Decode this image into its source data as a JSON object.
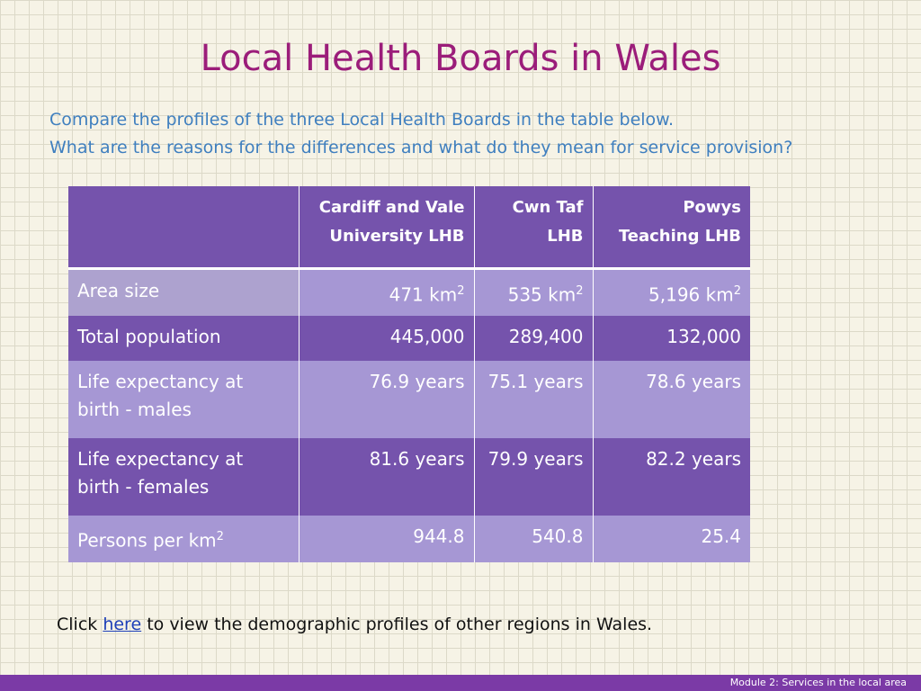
{
  "title": "Local Health Boards in Wales",
  "subtitle": {
    "line1": "Compare the profiles of the three Local Health Boards in the table below.",
    "line2": "What are the reasons for the differences and what do they mean for service provision?"
  },
  "table": {
    "headers": [
      {
        "line1": "",
        "line2": ""
      },
      {
        "line1": "Cardiff and Vale",
        "line2": "University LHB"
      },
      {
        "line1": "Cwn Taf",
        "line2": "LHB"
      },
      {
        "line1": "Powys",
        "line2": "Teaching LHB"
      }
    ],
    "unit_km": "km",
    "sup_2": "2",
    "rows": {
      "area": {
        "label": "Area size",
        "values": [
          "471",
          "535",
          "5,196"
        ]
      },
      "population": {
        "label": "Total population",
        "values": [
          "445,000",
          "289,400",
          "132,000"
        ]
      },
      "life_males": {
        "label_line1": "Life expectancy at",
        "label_line2": "birth - males",
        "values": [
          "76.9 years",
          "75.1 years",
          "78.6 years"
        ]
      },
      "life_females": {
        "label_line1": "Life expectancy at",
        "label_line2": "birth - females",
        "values": [
          "81.6 years",
          "79.9 years",
          "82.2 years"
        ]
      },
      "density": {
        "label": "Persons per km",
        "values": [
          "944.8",
          "540.8",
          "25.4"
        ]
      }
    }
  },
  "note": {
    "prefix": "Click",
    "link": "here",
    "suffix": "to view the demographic profiles of other regions in Wales."
  },
  "footer": "Module 2: Services in the local area"
}
